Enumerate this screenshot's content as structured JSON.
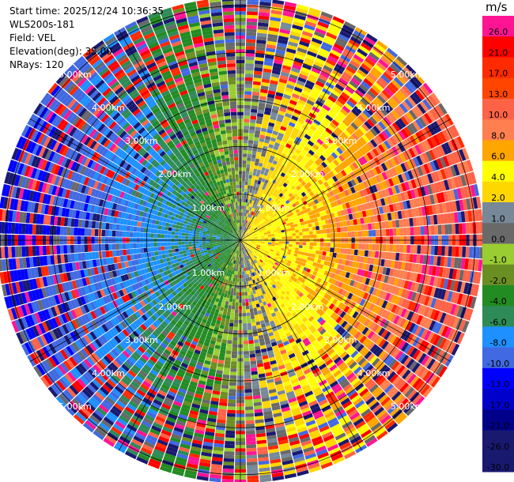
{
  "header": {
    "start_time": "Start time: 2025/12/24 10:36:35",
    "instrument": "WLS200s-181",
    "field": "Field: VEL",
    "elevation": "Elevation(deg): 35.00",
    "nrays": "NRays: 120"
  },
  "colorbar": {
    "unit": "m/s",
    "levels": [
      {
        "label": "26.0",
        "color": "#ff1493"
      },
      {
        "label": "21.0",
        "color": "#ff0000"
      },
      {
        "label": "17.0",
        "color": "#ff2a00"
      },
      {
        "label": "13.0",
        "color": "#ff4500"
      },
      {
        "label": "10.0",
        "color": "#ff6347"
      },
      {
        "label": "8.0",
        "color": "#ff7f50"
      },
      {
        "label": "6.0",
        "color": "#ffa500"
      },
      {
        "label": "4.0",
        "color": "#ffff00"
      },
      {
        "label": "2.0",
        "color": "#ffd700"
      },
      {
        "label": "1.0",
        "color": "#778899"
      },
      {
        "label": "0.0",
        "color": "#696969"
      },
      {
        "label": "-1.0",
        "color": "#9acd32"
      },
      {
        "label": "-2.0",
        "color": "#6b8e23"
      },
      {
        "label": "-4.0",
        "color": "#228b22"
      },
      {
        "label": "-6.0",
        "color": "#2e8b57"
      },
      {
        "label": "-8.0",
        "color": "#1e90ff"
      },
      {
        "label": "-10.0",
        "color": "#4169e1"
      },
      {
        "label": "-13.0",
        "color": "#0000ff"
      },
      {
        "label": "-17.0",
        "color": "#0000cd"
      },
      {
        "label": "-21.0",
        "color": "#00008b"
      },
      {
        "label": "-26.0",
        "color": "#191970"
      },
      {
        "label": "-30.0",
        "color": "#191970"
      }
    ]
  },
  "chart_data": {
    "type": "heatmap",
    "projection": "polar",
    "field": "VEL",
    "units": "m/s",
    "nrays": 120,
    "range_rings": [
      "1.00km",
      "2.00km",
      "3.00km",
      "4.00km",
      "5.00km"
    ],
    "ring_label_azimuths_deg": [
      45,
      135,
      225,
      315
    ],
    "max_range_km": 5.8,
    "radial_gates": 70,
    "velocity_field_approximation": {
      "pattern": "positive velocities east (yellow/orange/red), negative velocities west (green/blue), gray near north-south axis, pink/red and dark blue noise at outer ranges",
      "peak_speed_mps": 12,
      "speed_increase_with_range": true
    },
    "colorbar_ticks": [
      26.0,
      21.0,
      17.0,
      13.0,
      10.0,
      8.0,
      6.0,
      4.0,
      2.0,
      1.0,
      0.0,
      -1.0,
      -2.0,
      -4.0,
      -6.0,
      -8.0,
      -10.0,
      -13.0,
      -17.0,
      -21.0,
      -26.0,
      -30.0
    ],
    "legend_position": "right"
  }
}
